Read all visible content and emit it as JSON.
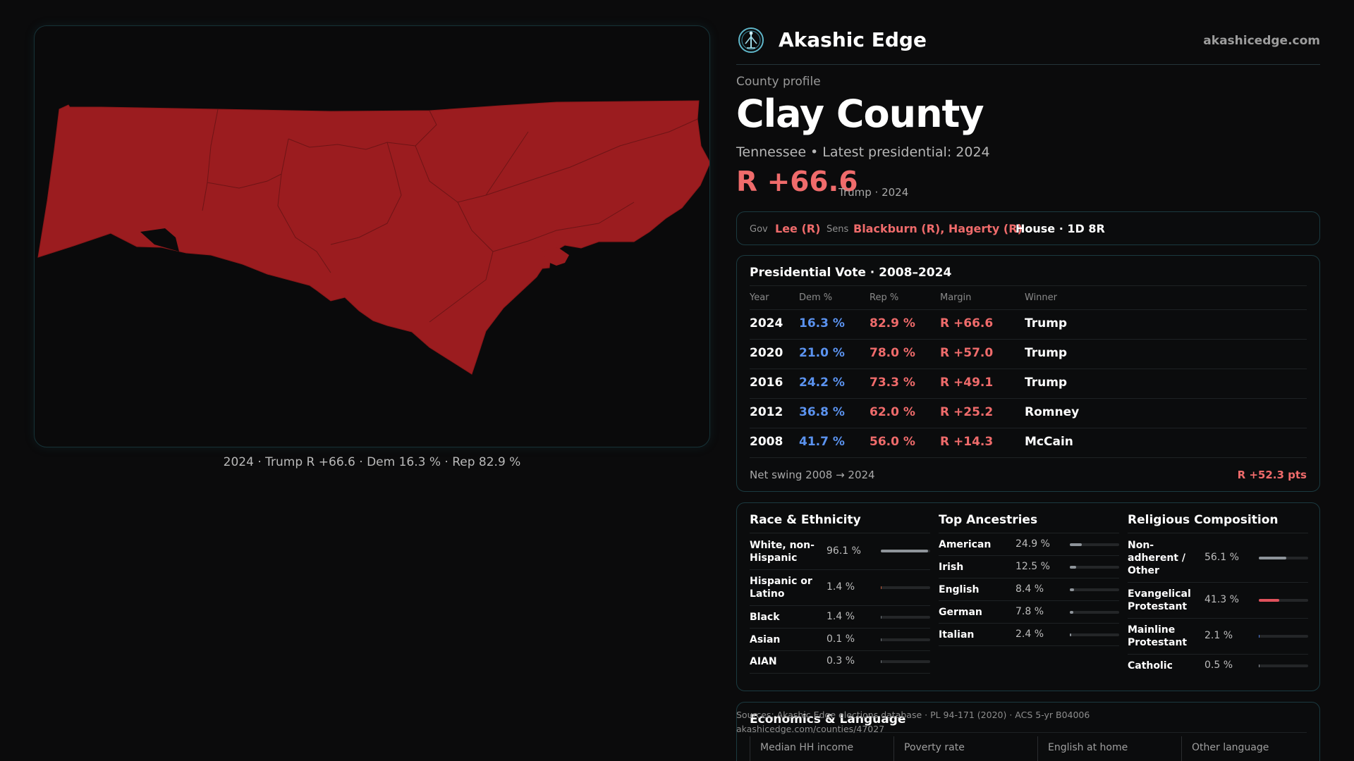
{
  "map": {
    "caption": "2024 · Trump R +66.6 · Dem 16.3 % · Rep 82.9 %",
    "fill_color": "#9b1c1f"
  },
  "header": {
    "brand": "Akashic Edge",
    "site": "akashicedge.com",
    "logo_icon": "tree-of-life-icon"
  },
  "profile": {
    "eyebrow": "County profile",
    "title": "Clay County",
    "subtitle": "Tennessee • Latest presidential: 2024",
    "margin": "R +66.6",
    "margin_note": "Trump · 2024"
  },
  "officials": {
    "gov_label": "Gov",
    "gov": "Lee (R)",
    "sens_label": "Sens",
    "sens": "Blackburn (R), Hagerty (R)",
    "house": "House · 1D 8R"
  },
  "presidential": {
    "title": "Presidential Vote · 2008–2024",
    "headers": [
      "Year",
      "Dem %",
      "Rep %",
      "Margin",
      "Winner"
    ],
    "rows": [
      {
        "year": "2024",
        "dem": "16.3 %",
        "rep": "82.9 %",
        "margin": "R +66.6",
        "winner": "Trump"
      },
      {
        "year": "2020",
        "dem": "21.0 %",
        "rep": "78.0 %",
        "margin": "R +57.0",
        "winner": "Trump"
      },
      {
        "year": "2016",
        "dem": "24.2 %",
        "rep": "73.3 %",
        "margin": "R +49.1",
        "winner": "Trump"
      },
      {
        "year": "2012",
        "dem": "36.8 %",
        "rep": "62.0 %",
        "margin": "R +25.2",
        "winner": "Romney"
      },
      {
        "year": "2008",
        "dem": "41.7 %",
        "rep": "56.0 %",
        "margin": "R +14.3",
        "winner": "McCain"
      }
    ],
    "swing_label": "Net swing 2008 → 2024",
    "swing_value": "R +52.3 pts"
  },
  "race": {
    "title": "Race & Ethnicity",
    "items": [
      {
        "label": "White, non-Hispanic",
        "value": "96.1 %",
        "pct": 96.1,
        "color": "#8e949a"
      },
      {
        "label": "Hispanic or Latino",
        "value": "1.4 %",
        "pct": 1.4,
        "color": "#c05a3a"
      },
      {
        "label": "Black",
        "value": "1.4 %",
        "pct": 1.4,
        "color": "#6f7479"
      },
      {
        "label": "Asian",
        "value": "0.1 %",
        "pct": 0.1,
        "color": "#6f7479"
      },
      {
        "label": "AIAN",
        "value": "0.3 %",
        "pct": 0.3,
        "color": "#6f7479"
      }
    ]
  },
  "ancestry": {
    "title": "Top Ancestries",
    "items": [
      {
        "label": "American",
        "value": "24.9 %",
        "pct": 24.9,
        "color": "#8e949a"
      },
      {
        "label": "Irish",
        "value": "12.5 %",
        "pct": 12.5,
        "color": "#8e949a"
      },
      {
        "label": "English",
        "value": "8.4 %",
        "pct": 8.4,
        "color": "#8e949a"
      },
      {
        "label": "German",
        "value": "7.8 %",
        "pct": 7.8,
        "color": "#8e949a"
      },
      {
        "label": "Italian",
        "value": "2.4 %",
        "pct": 2.4,
        "color": "#8e949a"
      }
    ]
  },
  "religion": {
    "title": "Religious Composition",
    "items": [
      {
        "label": "Non-adherent / Other",
        "value": "56.1 %",
        "pct": 56.1,
        "color": "#8e949a"
      },
      {
        "label": "Evangelical Protestant",
        "value": "41.3 %",
        "pct": 41.3,
        "color": "#e0525c"
      },
      {
        "label": "Mainline Protestant",
        "value": "2.1 %",
        "pct": 2.1,
        "color": "#4b77d6"
      },
      {
        "label": "Catholic",
        "value": "0.5 %",
        "pct": 0.5,
        "color": "#8e949a"
      }
    ]
  },
  "economics": {
    "title": "Economics & Language",
    "cells": [
      "Median HH income",
      "Poverty rate",
      "English at home",
      "Other language"
    ]
  },
  "sources": {
    "line1": "Sources: Akashic Edge elections database · PL 94-171 (2020) · ACS 5-yr B04006",
    "line2": "akashicedge.com/counties/47027"
  }
}
